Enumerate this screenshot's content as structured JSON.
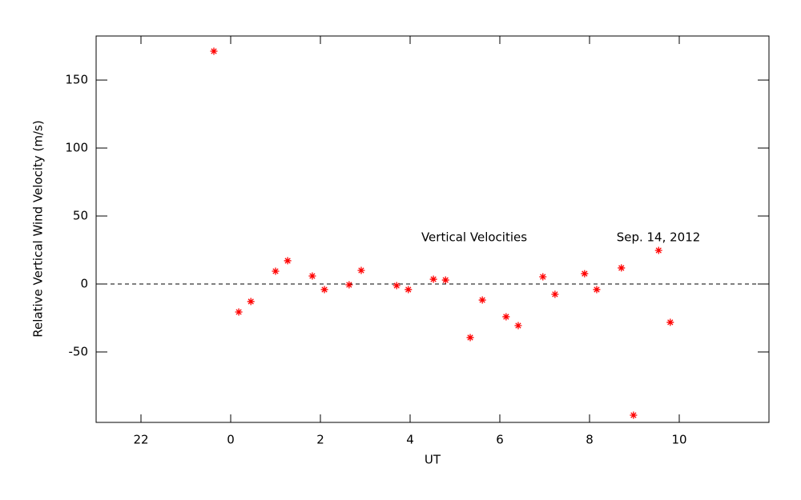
{
  "chart_data": {
    "type": "scatter",
    "x_label": "UT",
    "y_label": "Relative Vertical Wind Velocity (m/s)",
    "annotations": [
      "Vertical Velocities",
      "Sep. 14, 2012"
    ],
    "series": [
      {
        "name": "Vertical Velocities",
        "color": "#ff0000",
        "x": [
          -0.375,
          0.18,
          0.45,
          1.0,
          1.27,
          1.82,
          2.09,
          2.64,
          2.91,
          3.7,
          3.96,
          4.52,
          4.79,
          5.34,
          5.61,
          6.14,
          6.41,
          6.96,
          7.23,
          7.89,
          8.16,
          8.71,
          8.98,
          9.54,
          9.8
        ],
        "values": [
          171.2,
          -20.6,
          -12.9,
          9.4,
          17.1,
          5.9,
          -4.1,
          -0.6,
          10.0,
          -1.2,
          -4.1,
          3.5,
          2.9,
          -39.4,
          -11.8,
          -24.1,
          -30.6,
          5.3,
          -7.6,
          7.6,
          -4.1,
          11.8,
          -96.5,
          24.7,
          -28.2
        ]
      }
    ],
    "reference_line": 0,
    "xlim": [
      -3,
      12
    ],
    "xticks": [
      {
        "value": -2,
        "label": "22"
      },
      0,
      2,
      4,
      6,
      8,
      10
    ],
    "ylim": [
      -101.8,
      182.4
    ],
    "yticks": [
      -50,
      0,
      50,
      100,
      150
    ]
  }
}
